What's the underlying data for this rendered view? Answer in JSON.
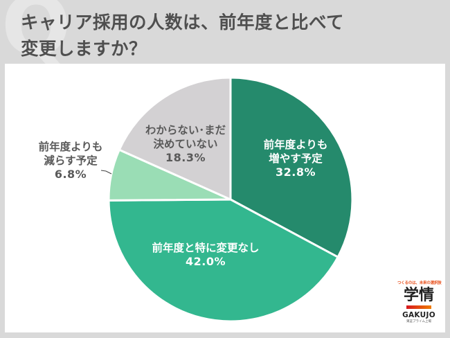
{
  "header": {
    "q_mark": "Q",
    "title_line1": "キャリア採用の人数は、前年度と比べて",
    "title_line2": "変更しますか？"
  },
  "colors": {
    "page_background": "#d9d9d9",
    "panel_background": "#ffffff",
    "title_text": "#4f4f4f",
    "slice_increase": "#258a6c",
    "slice_no_change": "#33b78f",
    "slice_decrease": "#9addb5",
    "slice_undecided": "#d3d1d3"
  },
  "labels": {
    "increase": {
      "line1": "前年度よりも",
      "line2": "増やす予定",
      "pct": "32.8%"
    },
    "no_change": {
      "line1": "前年度と特に変更なし",
      "pct": "42.0%"
    },
    "decrease": {
      "line1": "前年度よりも",
      "line2": "減らす予定",
      "pct": "6.8%"
    },
    "undecided": {
      "line1": "わからない･まだ",
      "line2": "決めていない",
      "pct": "18.3%"
    }
  },
  "logo": {
    "tagline": "つくるのは、未来の選択肢",
    "kanji": "学情",
    "name": "GAKUJO",
    "sub": "東証プライム上場"
  },
  "chart_data": {
    "type": "pie",
    "title": "キャリア採用の人数は、前年度と比べて変更しますか？",
    "start_angle_deg": -90,
    "direction": "clockwise",
    "categories": [
      "前年度よりも増やす予定",
      "前年度と特に変更なし",
      "前年度よりも減らす予定",
      "わからない・まだ決めていない"
    ],
    "values": [
      32.8,
      42.0,
      6.8,
      18.3
    ],
    "unit": "%",
    "colors": [
      "#258a6c",
      "#33b78f",
      "#9addb5",
      "#d3d1d3"
    ],
    "legend": "none (labels on slices)",
    "center": [
      326,
      196
    ],
    "radius": 176
  }
}
